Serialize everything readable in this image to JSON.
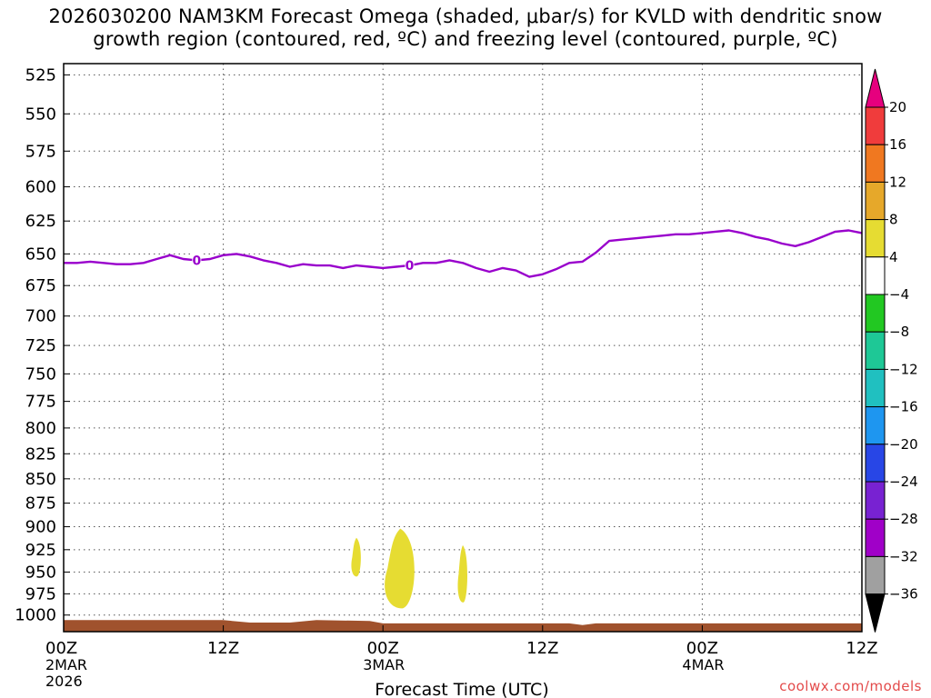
{
  "title": {
    "line1": "2026030200 NAM3KM Forecast Omega (shaded, μbar/s) for KVLD with dendritic snow",
    "line2": "growth region (contoured, red, ºC) and freezing level (contoured, purple, ºC)"
  },
  "credit": "coolwx.com/models",
  "chart_data": {
    "type": "time-height cross section",
    "xlabel": "Forecast Time (UTC)",
    "ylabel": "",
    "x_range_hours": [
      0,
      60
    ],
    "y_range_hpa": [
      1020,
      518
    ],
    "y_scale": "log-pressure (inverted)",
    "grid": true,
    "y_ticks": [
      525,
      550,
      575,
      600,
      625,
      650,
      675,
      700,
      725,
      750,
      775,
      800,
      825,
      850,
      875,
      900,
      925,
      950,
      975,
      1000
    ],
    "x_ticks": [
      {
        "hour": 0,
        "label": "00Z",
        "date": "2MAR",
        "year": "2026"
      },
      {
        "hour": 12,
        "label": "12Z",
        "date": "",
        "year": ""
      },
      {
        "hour": 24,
        "label": "00Z",
        "date": "3MAR",
        "year": ""
      },
      {
        "hour": 36,
        "label": "12Z",
        "date": "",
        "year": ""
      },
      {
        "hour": 48,
        "label": "00Z",
        "date": "4MAR",
        "year": ""
      },
      {
        "hour": 60,
        "label": "12Z",
        "date": "",
        "year": ""
      }
    ],
    "freezing_level": {
      "color": "#9900cc",
      "contour_label": "0",
      "label_hours": [
        10,
        26
      ],
      "points": [
        [
          0,
          657
        ],
        [
          1,
          657
        ],
        [
          2,
          656
        ],
        [
          3,
          657
        ],
        [
          4,
          658
        ],
        [
          5,
          658
        ],
        [
          6,
          657
        ],
        [
          7,
          654
        ],
        [
          8,
          651
        ],
        [
          9,
          654
        ],
        [
          10,
          655
        ],
        [
          11,
          654
        ],
        [
          12,
          651
        ],
        [
          13,
          650
        ],
        [
          14,
          652
        ],
        [
          15,
          655
        ],
        [
          16,
          657
        ],
        [
          17,
          660
        ],
        [
          18,
          658
        ],
        [
          19,
          659
        ],
        [
          20,
          659
        ],
        [
          21,
          661
        ],
        [
          22,
          659
        ],
        [
          23,
          660
        ],
        [
          24,
          661
        ],
        [
          25,
          660
        ],
        [
          26,
          659
        ],
        [
          27,
          657
        ],
        [
          28,
          657
        ],
        [
          29,
          655
        ],
        [
          30,
          657
        ],
        [
          31,
          661
        ],
        [
          32,
          664
        ],
        [
          33,
          661
        ],
        [
          34,
          663
        ],
        [
          35,
          668
        ],
        [
          36,
          666
        ],
        [
          37,
          662
        ],
        [
          38,
          657
        ],
        [
          39,
          656
        ],
        [
          40,
          649
        ],
        [
          41,
          640
        ],
        [
          42,
          639
        ],
        [
          43,
          638
        ],
        [
          44,
          637
        ],
        [
          45,
          636
        ],
        [
          46,
          635
        ],
        [
          47,
          635
        ],
        [
          48,
          634
        ],
        [
          49,
          633
        ],
        [
          50,
          632
        ],
        [
          51,
          634
        ],
        [
          52,
          637
        ],
        [
          53,
          639
        ],
        [
          54,
          642
        ],
        [
          55,
          644
        ],
        [
          56,
          641
        ],
        [
          57,
          637
        ],
        [
          58,
          633
        ],
        [
          59,
          632
        ],
        [
          60,
          634
        ]
      ]
    },
    "omega_shaded": [
      {
        "range": "4 to 8",
        "color": "#e6dc32",
        "hour_center": 25.3,
        "p_top": 902,
        "p_bottom": 992
      },
      {
        "range": "4 to 8",
        "color": "#e6dc32",
        "hour_center": 22.0,
        "p_top": 912,
        "p_bottom": 955
      },
      {
        "range": "4 to 8",
        "color": "#e6dc32",
        "hour_center": 30.0,
        "p_top": 920,
        "p_bottom": 985
      }
    ],
    "terrain": {
      "color": "#a0522d",
      "description": "surface below ~1007 hPa"
    },
    "colorbar": {
      "labels": [
        "20",
        "16",
        "12",
        "8",
        "4",
        "-4",
        "-8",
        "-12",
        "-16",
        "-20",
        "-24",
        "-28",
        "-32",
        "-36"
      ],
      "bins": [
        {
          "range": ">20",
          "color": "#e6007e"
        },
        {
          "range": "16 to 20",
          "color": "#f03c3c"
        },
        {
          "range": "12 to 16",
          "color": "#f07820"
        },
        {
          "range": "8 to 12",
          "color": "#e6a82a"
        },
        {
          "range": "4 to 8",
          "color": "#e6dc32"
        },
        {
          "range": "-4 to 4",
          "color": "#ffffff"
        },
        {
          "range": "-8 to -4",
          "color": "#22c822"
        },
        {
          "range": "-12 to -8",
          "color": "#1ec896"
        },
        {
          "range": "-16 to -12",
          "color": "#20c0c0"
        },
        {
          "range": "-20 to -16",
          "color": "#1e96f0"
        },
        {
          "range": "-24 to -20",
          "color": "#2846e6"
        },
        {
          "range": "-28 to -24",
          "color": "#7822d2"
        },
        {
          "range": "-32 to -28",
          "color": "#a000c8"
        },
        {
          "range": "-36 to -32",
          "color": "#a0a0a0"
        },
        {
          "range": "<-36",
          "color": "#000000"
        }
      ]
    }
  }
}
